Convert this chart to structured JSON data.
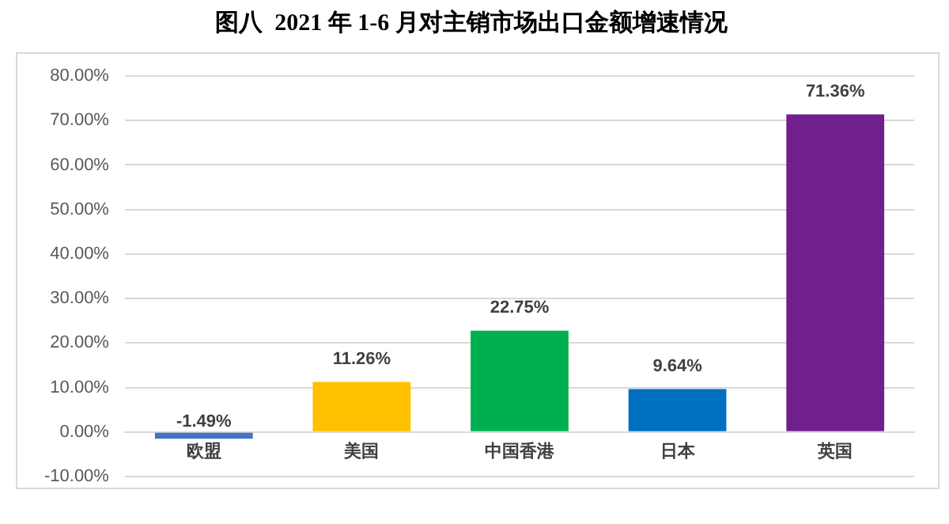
{
  "chart_data": {
    "type": "bar",
    "title": "图八  2021 年 1-6 月对主销市场出口金额增速情况",
    "categories": [
      "欧盟",
      "美国",
      "中国香港",
      "日本",
      "英国"
    ],
    "values": [
      -1.49,
      11.26,
      22.75,
      9.64,
      71.36
    ],
    "colors": [
      "#4472c4",
      "#ffc000",
      "#00b050",
      "#0070c0",
      "#70208c"
    ],
    "value_labels": [
      "-1.49%",
      "11.26%",
      "22.75%",
      "9.64%",
      "71.36%"
    ],
    "ylim": [
      -10,
      80
    ],
    "yticks": [
      {
        "value": -10,
        "label": "-10.00%"
      },
      {
        "value": 0,
        "label": "0.00%"
      },
      {
        "value": 10,
        "label": "10.00%"
      },
      {
        "value": 20,
        "label": "20.00%"
      },
      {
        "value": 30,
        "label": "30.00%"
      },
      {
        "value": 40,
        "label": "40.00%"
      },
      {
        "value": 50,
        "label": "50.00%"
      },
      {
        "value": 60,
        "label": "60.00%"
      },
      {
        "value": 70,
        "label": "70.00%"
      },
      {
        "value": 80,
        "label": "80.00%"
      }
    ],
    "grid": "y",
    "legend": false
  }
}
